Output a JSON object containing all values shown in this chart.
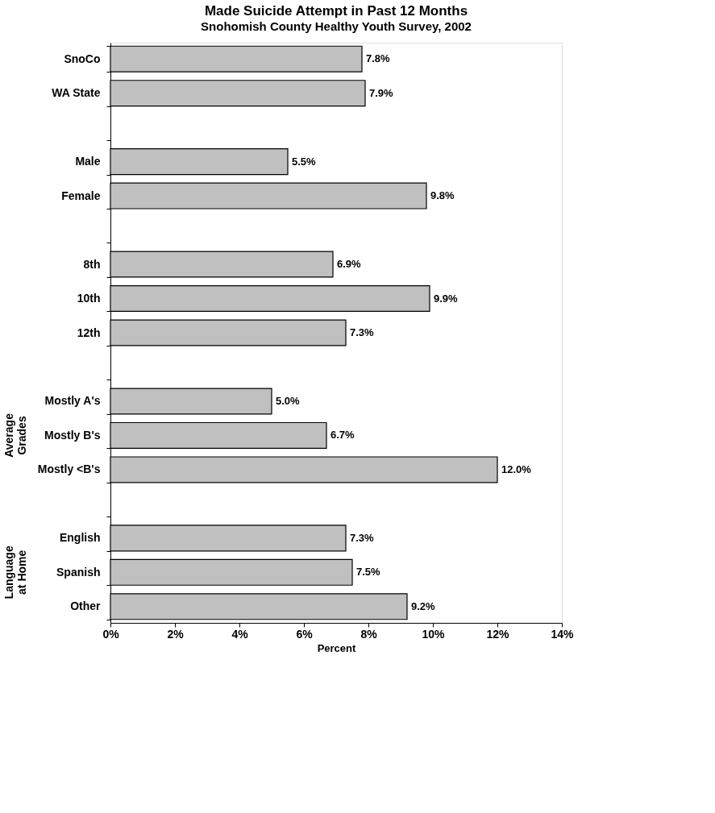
{
  "chart_data": {
    "type": "bar",
    "orientation": "horizontal",
    "title": "Made Suicide Attempt in Past 12 Months",
    "subtitle": "Snohomish County Healthy Youth Survey, 2002",
    "xlabel": "Percent",
    "categories": [
      "SnoCo",
      "WA State",
      null,
      "Male",
      "Female",
      null,
      "8th",
      "10th",
      "12th",
      null,
      "Mostly A's",
      "Mostly B's",
      "Mostly <B's",
      null,
      "English",
      "Spanish",
      "Other"
    ],
    "values": [
      7.8,
      7.9,
      null,
      5.5,
      9.8,
      null,
      6.9,
      9.9,
      7.3,
      null,
      5.0,
      6.7,
      12.0,
      null,
      7.3,
      7.5,
      9.2
    ],
    "value_labels": [
      "7.8%",
      "7.9%",
      null,
      "5.5%",
      "9.8%",
      null,
      "6.9%",
      "9.9%",
      "7.3%",
      null,
      "5.0%",
      "6.7%",
      "12.0%",
      null,
      "7.3%",
      "7.5%",
      "9.2%"
    ],
    "color": "#c0c0c0",
    "xlim": [
      0,
      14
    ],
    "xticks": [
      {
        "value": 0,
        "label": "0%"
      },
      {
        "value": 2,
        "label": "2%"
      },
      {
        "value": 4,
        "label": "4%"
      },
      {
        "value": 6,
        "label": "6%"
      },
      {
        "value": 8,
        "label": "8%"
      },
      {
        "value": 10,
        "label": "10%"
      },
      {
        "value": 12,
        "label": "12%"
      },
      {
        "value": 14,
        "label": "14%"
      }
    ],
    "annotations": [
      "Average Grades",
      "Language at Home"
    ],
    "grid": false
  }
}
